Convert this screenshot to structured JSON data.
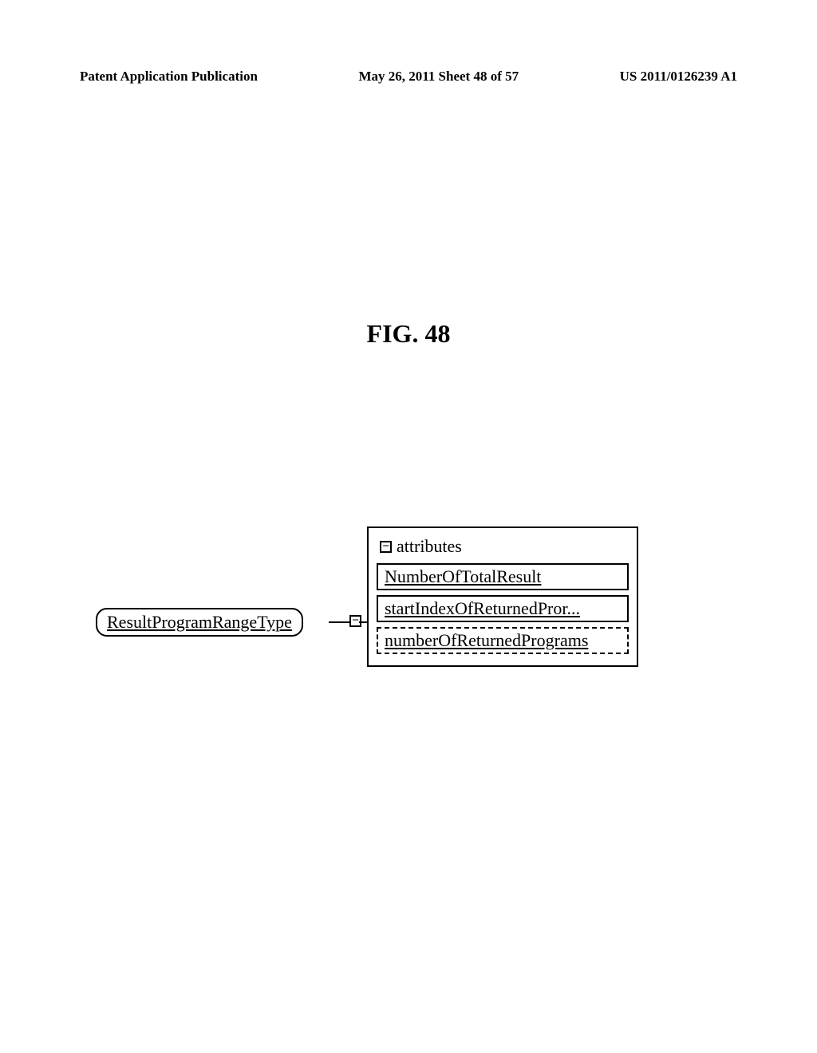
{
  "header": {
    "left": "Patent Application Publication",
    "center": "May 26, 2011  Sheet 48 of 57",
    "right": "US 2011/0126239 A1"
  },
  "figure": {
    "title": "FIG. 48"
  },
  "diagram": {
    "type_name": "ResultProgramRangeType",
    "expand_symbol": "−",
    "collapse_symbol": "−",
    "attributes_label": "attributes",
    "attributes": [
      {
        "label": "NumberOfTotalResult",
        "optional": false
      },
      {
        "label": "startIndexOfReturnedPror...",
        "optional": false
      },
      {
        "label": "numberOfReturnedPrograms",
        "optional": true
      }
    ],
    "colors": {
      "background": "#ffffff",
      "border": "#000000",
      "text": "#000000"
    },
    "fonts": {
      "header_size": 17,
      "title_size": 32,
      "label_size": 22
    }
  }
}
